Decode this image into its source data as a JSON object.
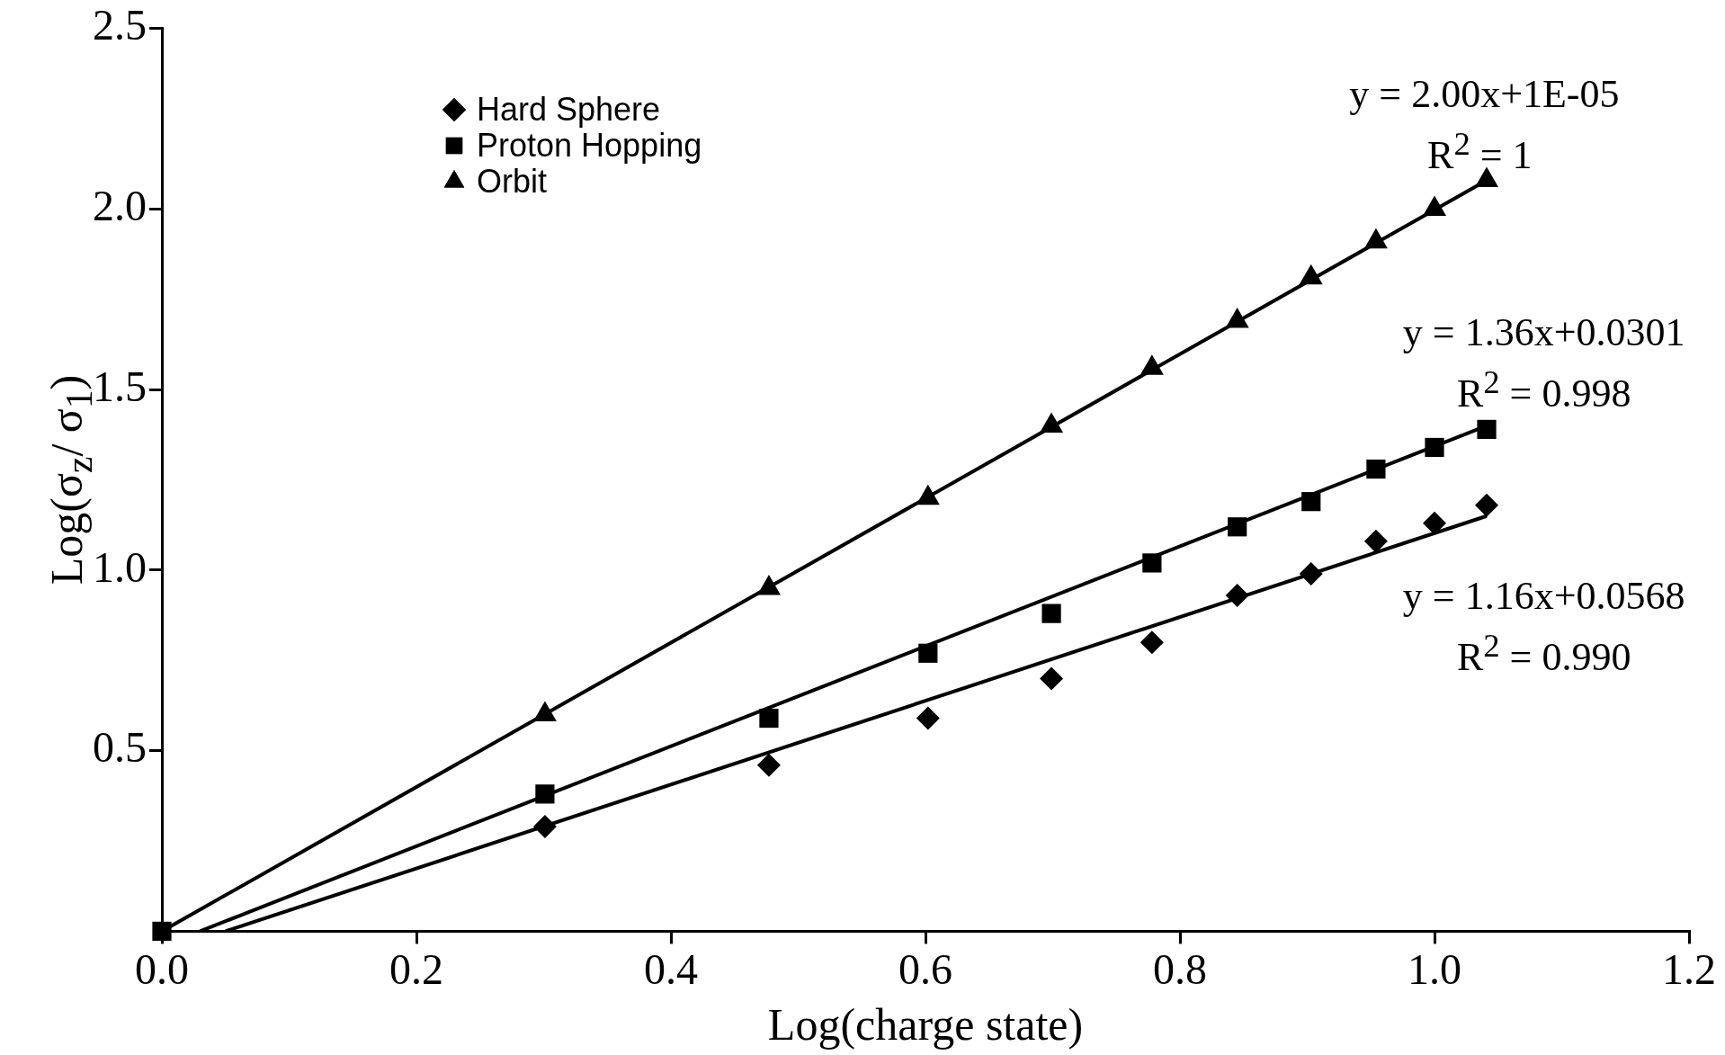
{
  "chart_data": {
    "type": "scatter",
    "xlabel": "Log(charge state)",
    "ylabel": "Log(σ$_{z}$/ σ$_{1}$)",
    "xlim": [
      0,
      1.2
    ],
    "ylim": [
      0,
      2.5
    ],
    "xticks": [
      {
        "value": 0,
        "label": "0.0"
      },
      0.2,
      0.4,
      0.6,
      0.8,
      {
        "value": 1,
        "label": "1.0"
      },
      1.2
    ],
    "yticks": [
      0.5,
      {
        "value": 1,
        "label": "1.0"
      },
      1.5,
      {
        "value": 2,
        "label": "2.0"
      },
      2.5
    ],
    "grid": false,
    "legend": "top left",
    "series": [
      {
        "name": "Hard Sphere",
        "color": "#000000",
        "marker": "diamond",
        "x": [
          0.301,
          0.477,
          0.602,
          0.699,
          0.778,
          0.845,
          0.903,
          0.954,
          1.0,
          1.041
        ],
        "values": [
          0.29,
          0.46,
          0.59,
          0.7,
          0.8,
          0.93,
          0.99,
          1.08,
          1.13,
          1.18
        ]
      },
      {
        "name": "Proton Hopping",
        "color": "#000000",
        "marker": "square",
        "x": [
          0,
          0.301,
          0.477,
          0.602,
          0.699,
          0.778,
          0.845,
          0.903,
          0.954,
          1.0,
          1.041
        ],
        "values": [
          0,
          0.38,
          0.59,
          0.77,
          0.88,
          1.02,
          1.12,
          1.19,
          1.28,
          1.34,
          1.39
        ]
      },
      {
        "name": "Orbit",
        "color": "#000000",
        "marker": "triangle",
        "x": [
          0.301,
          0.477,
          0.602,
          0.699,
          0.778,
          0.845,
          0.903,
          0.954,
          1.0,
          1.041
        ],
        "values": [
          0.6,
          0.95,
          1.2,
          1.4,
          1.56,
          1.69,
          1.81,
          1.91,
          2.0,
          2.08
        ]
      },
      {
        "type": "line",
        "color": "#000000",
        "marker": "none",
        "x": [
          0.05,
          1.041
        ],
        "values": [
          0,
          1.15
        ]
      },
      {
        "type": "line",
        "color": "#000000",
        "marker": "none",
        "x": [
          0.03,
          1.041
        ],
        "values": [
          0,
          1.4
        ]
      },
      {
        "type": "line",
        "color": "#000000",
        "marker": "none",
        "x": [
          0,
          1.041
        ],
        "values": [
          0,
          2.08
        ]
      }
    ],
    "annotations": [
      "y = 2.00x+1E-05",
      "R$^{2}$ = 1",
      "y = 1.36x+0.0301",
      "R$^{2}$ = 0.998",
      "y = 1.16x+0.0568",
      "R$^{2}$ = 0.990"
    ]
  }
}
